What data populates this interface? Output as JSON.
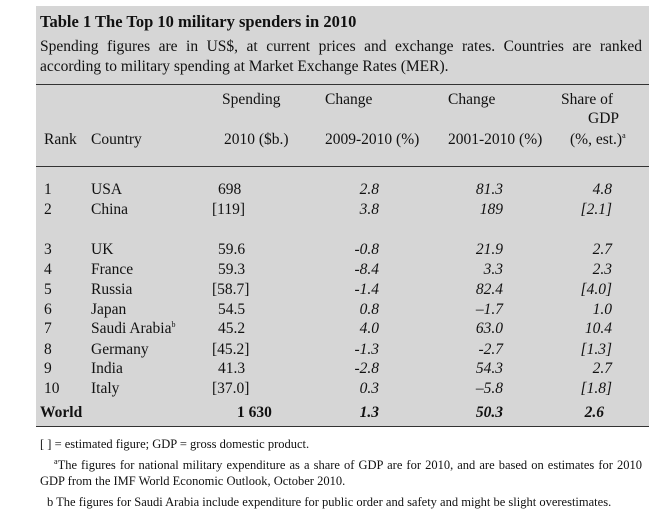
{
  "table": {
    "title": "Table 1 The Top 10 military spenders in 2010",
    "subtitle": "Spending figures are in US$, at current prices and exchange rates. Countries are ranked according to military spending at Market Exchange Rates (MER).",
    "headers": {
      "rank": "Rank",
      "country": "Country",
      "spending_1": "Spending",
      "spending_2": "2010 ($b.)",
      "change1_1": "Change",
      "change1_2": "2009-2010 (%)",
      "change2_1": "Change",
      "change2_2": "2001-2010 (%)",
      "share_1": "Share of",
      "share_2": "GDP",
      "share_3": "(%, est.)",
      "share_mark": "a"
    },
    "rows": [
      {
        "rank": "1",
        "country": "USA",
        "mark": "",
        "spending": "698",
        "change_2009_2010": "2.8",
        "change_2001_2010": "81.3",
        "share_gdp": "4.8"
      },
      {
        "rank": "2",
        "country": "China",
        "mark": "",
        "spending": "[119]",
        "change_2009_2010": "3.8",
        "change_2001_2010": "189",
        "share_gdp": "[2.1]"
      },
      {
        "rank": "3",
        "country": "UK",
        "mark": "",
        "spending": "59.6",
        "change_2009_2010": "-0.8",
        "change_2001_2010": "21.9",
        "share_gdp": "2.7"
      },
      {
        "rank": "4",
        "country": "France",
        "mark": "",
        "spending": "59.3",
        "change_2009_2010": "-8.4",
        "change_2001_2010": "3.3",
        "share_gdp": "2.3"
      },
      {
        "rank": "5",
        "country": "Russia",
        "mark": "",
        "spending": "[58.7]",
        "change_2009_2010": "-1.4",
        "change_2001_2010": "82.4",
        "share_gdp": "[4.0]"
      },
      {
        "rank": "6",
        "country": "Japan",
        "mark": "",
        "spending": "54.5",
        "change_2009_2010": "0.8",
        "change_2001_2010": "–1.7",
        "share_gdp": "1.0"
      },
      {
        "rank": "7",
        "country": "Saudi Arabia",
        "mark": "b",
        "spending": "45.2",
        "change_2009_2010": "4.0",
        "change_2001_2010": "63.0",
        "share_gdp": "10.4"
      },
      {
        "rank": "8",
        "country": "Germany",
        "mark": "",
        "spending": "[45.2]",
        "change_2009_2010": "-1.3",
        "change_2001_2010": "-2.7",
        "share_gdp": "[1.3]"
      },
      {
        "rank": "9",
        "country": "India",
        "mark": "",
        "spending": "41.3",
        "change_2009_2010": "-2.8",
        "change_2001_2010": "54.3",
        "share_gdp": "2.7"
      },
      {
        "rank": "10",
        "country": "Italy",
        "mark": "",
        "spending": "[37.0]",
        "change_2009_2010": "0.3",
        "change_2001_2010": "–5.8",
        "share_gdp": "[1.8]"
      }
    ],
    "world": {
      "label": "World",
      "spending": "1 630",
      "change_2009_2010": "1.3",
      "change_2001_2010": "50.3",
      "share_gdp": "2.6"
    }
  },
  "footnotes": {
    "legend": "[ ] = estimated figure; GDP = gross domestic product.",
    "a_mark": "a",
    "a_text": "The figures for national military expenditure as a share of GDP are for 2010, and are based on estimates for 2010 GDP from the IMF World Economic Outlook, October 2010.",
    "b_text": "b The figures for Saudi Arabia include expenditure for public order and safety and might be slight overestimates."
  }
}
